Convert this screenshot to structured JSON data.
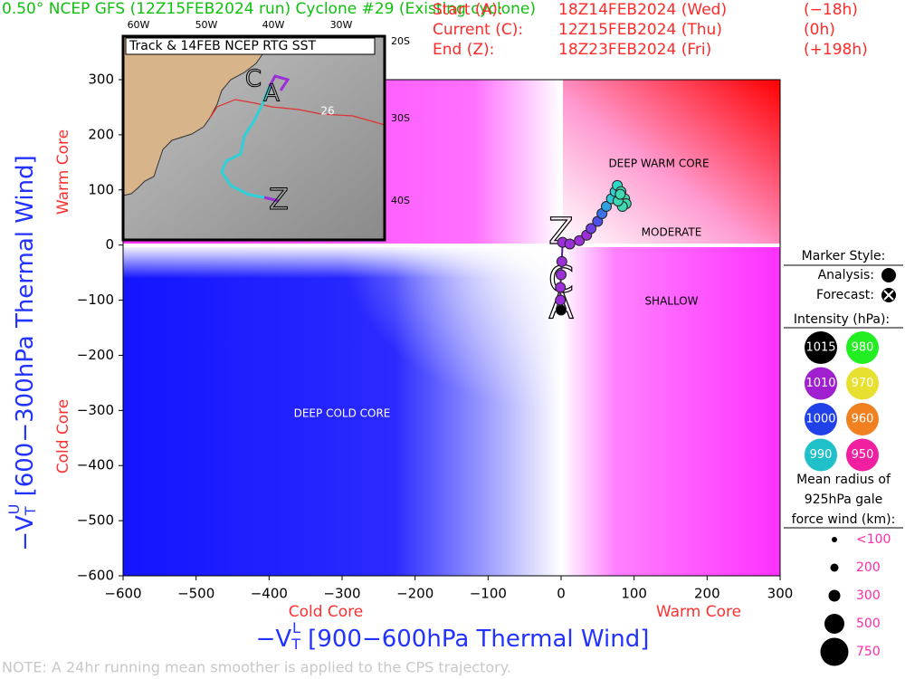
{
  "chart_data": {
    "type": "scatter",
    "title": "0.50° NCEP GFS (12Z15FEB2024 run) Cyclone #29 (Existing cyclone)",
    "times": [
      [
        "Start (A):",
        "18Z14FEB2024 (Wed)",
        "(−18h)"
      ],
      [
        "Current (C):",
        "12Z15FEB2024 (Thu)",
        "(0h)"
      ],
      [
        "End (Z):",
        "18Z23FEB2024 (Fri)",
        "(+198h)"
      ]
    ],
    "xlabel": {
      "symbol": "−V",
      "sub": "T",
      "sup": "L",
      "text": " [900−600hPa Thermal Wind]"
    },
    "ylabel": {
      "symbol": "−V",
      "sub": "T",
      "sup": "U",
      "text": " [600−300hPa Thermal Wind]"
    },
    "x_side_labels": [
      "Cold Core",
      "Warm Core"
    ],
    "y_side_labels": [
      "Warm Core",
      "Cold Core"
    ],
    "regions": [
      "DEEP WARM CORE",
      "MODERATE",
      "SHALLOW",
      "DEEP COLD CORE"
    ],
    "xlim": [
      -600,
      300
    ],
    "xticks": [
      {
        "value": -600,
        "label": "−600"
      },
      {
        "value": -500,
        "label": "−500"
      },
      {
        "value": -400,
        "label": "−400"
      },
      {
        "value": -300,
        "label": "−300"
      },
      {
        "value": -200,
        "label": "−200"
      },
      {
        "value": -100,
        "label": "−100"
      },
      0,
      100,
      200,
      300
    ],
    "ylim": [
      -600,
      300
    ],
    "yticks": [
      {
        "value": -600,
        "label": "−600"
      },
      {
        "value": -500,
        "label": "−500"
      },
      {
        "value": -400,
        "label": "−400"
      },
      {
        "value": -300,
        "label": "−300"
      },
      {
        "value": -200,
        "label": "−200"
      },
      {
        "value": -100,
        "label": "−100"
      },
      0,
      100,
      200,
      300
    ],
    "x": [
      0,
      -1,
      -1,
      0,
      1,
      2,
      12,
      25,
      35,
      41,
      50,
      56,
      62,
      69,
      74,
      77,
      82,
      87,
      89,
      84,
      78,
      81
    ],
    "values": [
      -118,
      -100,
      -77,
      -54,
      -30,
      5,
      2,
      8,
      18,
      30,
      43,
      57,
      70,
      84,
      97,
      108,
      97,
      84,
      75,
      70,
      80,
      92
    ],
    "colors": [
      "#000000",
      "#9b30d9",
      "#9b30d9",
      "#9b30d9",
      "#9b30d9",
      "#9b30d9",
      "#9b30d9",
      "#9b30d9",
      "#9b30d9",
      "#7040e0",
      "#4a50e8",
      "#3a70e8",
      "#30a0e0",
      "#30c8d8",
      "#30d0d0",
      "#30d8c8",
      "#40d8b0",
      "#40d8b0",
      "#40d8b0",
      "#40d8b0",
      "#40d8b0",
      "#40d8b0"
    ],
    "track_labels": [
      {
        "label": "A",
        "x": 0,
        "y": -115
      },
      {
        "label": "C",
        "x": 0,
        "y": -67
      },
      {
        "label": "Z",
        "x": 0,
        "y": 21
      }
    ],
    "legend": {
      "marker_title": "Marker Style:",
      "marker_items": [
        "Analysis:",
        "Forecast:"
      ],
      "intensity_title": "Intensity (hPa):",
      "intensity": [
        {
          "value": 1015,
          "color": "#000000"
        },
        {
          "value": 980,
          "color": "#22ee22"
        },
        {
          "value": 1010,
          "color": "#a020d0"
        },
        {
          "value": 970,
          "color": "#e8e030"
        },
        {
          "value": 1000,
          "color": "#2040e8"
        },
        {
          "value": 960,
          "color": "#f08020"
        },
        {
          "value": 990,
          "color": "#20c0c8"
        },
        {
          "value": 950,
          "color": "#f020a0"
        }
      ],
      "size_title": [
        "Mean radius of",
        "925hPa gale",
        "force wind (km):"
      ],
      "sizes": [
        "<100",
        "200",
        "300",
        "500",
        "750"
      ]
    },
    "inset": {
      "title": "Track & 14FEB NCEP RTG SST",
      "lon_labels": [
        "60W",
        "50W",
        "40W",
        "30W"
      ],
      "lat_labels": [
        "20S",
        "30S",
        "40S"
      ],
      "contour_label": "26",
      "track_labels": [
        "C",
        "A",
        "Z"
      ]
    },
    "note": "NOTE:  A 24hr running mean smoother is applied to the CPS trajectory."
  }
}
